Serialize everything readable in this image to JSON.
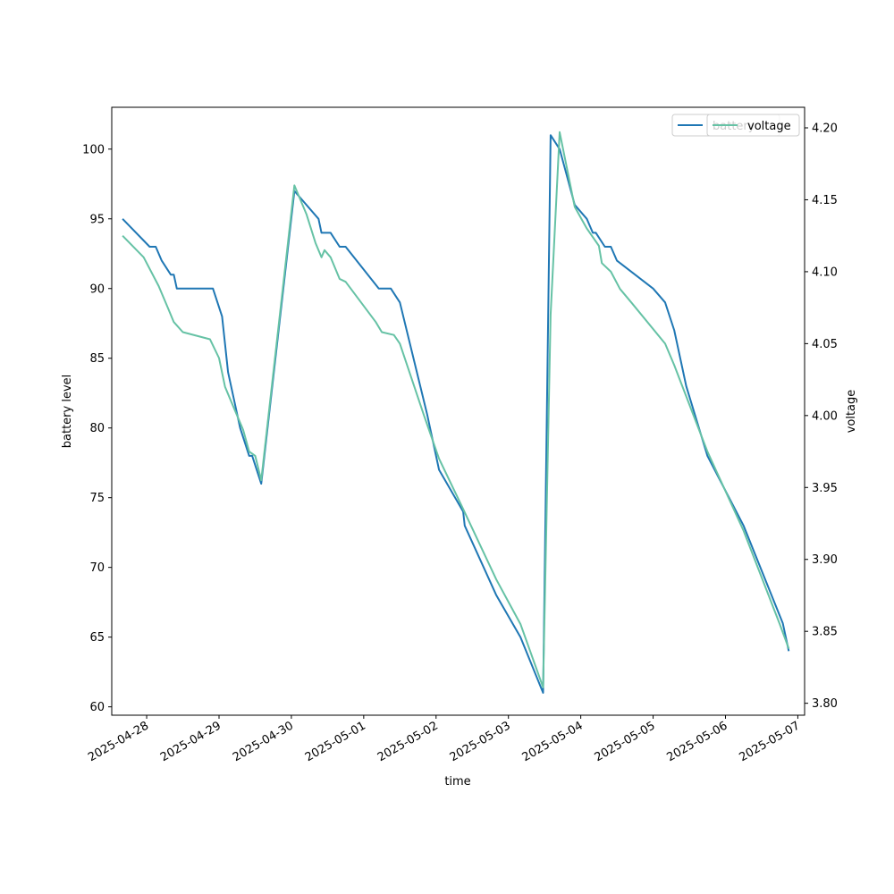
{
  "chart_data": {
    "type": "line",
    "xlabel": "time",
    "ylabel_left": "battery level",
    "ylabel_right": "voltage",
    "x_range": [
      "2025-04-27 12:25",
      "2025-05-07 02:15"
    ],
    "ylim_left": [
      59.4,
      103.0
    ],
    "ylim_right": [
      3.7917,
      4.2143
    ],
    "x_ticks": [
      "2025-04-28",
      "2025-04-29",
      "2025-04-30",
      "2025-05-01",
      "2025-05-02",
      "2025-05-03",
      "2025-05-04",
      "2025-05-05",
      "2025-05-06",
      "2025-05-07"
    ],
    "yticks_left": [
      60,
      65,
      70,
      75,
      80,
      85,
      90,
      95,
      100
    ],
    "yticks_right": [
      3.8,
      3.85,
      3.9,
      3.95,
      4.0,
      4.05,
      4.1,
      4.15,
      4.2
    ],
    "legend": [
      {
        "label": "battery",
        "color": "#1f77b4"
      },
      {
        "label": "voltage",
        "color": "#66c2a5"
      }
    ],
    "legend_placement": "upper-right",
    "grid": false,
    "series": [
      {
        "name": "battery",
        "axis": "left",
        "color": "#1f77b4",
        "points": [
          [
            "2025-04-27 16:00",
            95
          ],
          [
            "2025-04-28 01:00",
            93
          ],
          [
            "2025-04-28 03:00",
            93
          ],
          [
            "2025-04-28 05:00",
            92
          ],
          [
            "2025-04-28 08:00",
            91
          ],
          [
            "2025-04-28 09:00",
            91
          ],
          [
            "2025-04-28 10:00",
            90
          ],
          [
            "2025-04-28 22:00",
            90
          ],
          [
            "2025-04-29 01:00",
            88
          ],
          [
            "2025-04-29 03:00",
            84
          ],
          [
            "2025-04-29 07:00",
            80
          ],
          [
            "2025-04-29 10:00",
            78
          ],
          [
            "2025-04-29 11:00",
            78
          ],
          [
            "2025-04-29 14:00",
            76
          ],
          [
            "2025-04-30 01:00",
            97
          ],
          [
            "2025-04-30 09:00",
            95
          ],
          [
            "2025-04-30 10:00",
            94
          ],
          [
            "2025-04-30 13:00",
            94
          ],
          [
            "2025-04-30 16:00",
            93
          ],
          [
            "2025-04-30 18:00",
            93
          ],
          [
            "2025-05-01 05:00",
            90
          ],
          [
            "2025-05-01 09:00",
            90
          ],
          [
            "2025-05-01 12:00",
            89
          ],
          [
            "2025-05-01 21:00",
            81
          ],
          [
            "2025-05-02 01:00",
            77
          ],
          [
            "2025-05-02 09:00",
            74
          ],
          [
            "2025-05-02 09:30",
            73
          ],
          [
            "2025-05-02 20:00",
            68
          ],
          [
            "2025-05-03 04:00",
            65
          ],
          [
            "2025-05-03 11:30",
            61
          ],
          [
            "2025-05-03 14:00",
            101
          ],
          [
            "2025-05-03 17:00",
            100
          ],
          [
            "2025-05-03 22:00",
            96
          ],
          [
            "2025-05-04 02:00",
            95
          ],
          [
            "2025-05-04 04:00",
            94
          ],
          [
            "2025-05-04 05:00",
            94
          ],
          [
            "2025-05-04 08:00",
            93
          ],
          [
            "2025-05-04 10:00",
            93
          ],
          [
            "2025-05-04 12:00",
            92
          ],
          [
            "2025-05-05 00:00",
            90
          ],
          [
            "2025-05-05 04:00",
            89
          ],
          [
            "2025-05-05 07:00",
            87
          ],
          [
            "2025-05-05 11:00",
            83
          ],
          [
            "2025-05-05 18:00",
            78
          ],
          [
            "2025-05-06 06:00",
            73
          ],
          [
            "2025-05-06 19:00",
            66
          ],
          [
            "2025-05-06 21:00",
            64
          ]
        ]
      },
      {
        "name": "voltage",
        "axis": "right",
        "color": "#66c2a5",
        "points": [
          [
            "2025-04-27 16:00",
            4.125
          ],
          [
            "2025-04-27 23:00",
            4.11
          ],
          [
            "2025-04-28 04:00",
            4.09
          ],
          [
            "2025-04-28 07:00",
            4.075
          ],
          [
            "2025-04-28 09:00",
            4.065
          ],
          [
            "2025-04-28 12:00",
            4.058
          ],
          [
            "2025-04-28 21:00",
            4.053
          ],
          [
            "2025-04-29 00:00",
            4.04
          ],
          [
            "2025-04-29 02:00",
            4.02
          ],
          [
            "2025-04-29 05:00",
            4.005
          ],
          [
            "2025-04-29 08:00",
            3.99
          ],
          [
            "2025-04-29 10:00",
            3.975
          ],
          [
            "2025-04-29 12:00",
            3.972
          ],
          [
            "2025-04-29 14:00",
            3.955
          ],
          [
            "2025-04-30 01:00",
            4.16
          ],
          [
            "2025-04-30 05:00",
            4.14
          ],
          [
            "2025-04-30 08:00",
            4.12
          ],
          [
            "2025-04-30 10:00",
            4.11
          ],
          [
            "2025-04-30 11:00",
            4.115
          ],
          [
            "2025-04-30 13:00",
            4.11
          ],
          [
            "2025-04-30 16:00",
            4.095
          ],
          [
            "2025-04-30 18:00",
            4.093
          ],
          [
            "2025-05-01 04:00",
            4.065
          ],
          [
            "2025-05-01 06:00",
            4.058
          ],
          [
            "2025-05-01 10:00",
            4.056
          ],
          [
            "2025-05-01 12:00",
            4.05
          ],
          [
            "2025-05-01 20:00",
            4.0
          ],
          [
            "2025-05-02 01:00",
            3.97
          ],
          [
            "2025-05-02 09:00",
            3.935
          ],
          [
            "2025-05-02 20:00",
            3.886
          ],
          [
            "2025-05-03 04:00",
            3.855
          ],
          [
            "2025-05-03 11:30",
            3.811
          ],
          [
            "2025-05-03 14:00",
            4.07
          ],
          [
            "2025-05-03 17:00",
            4.197
          ],
          [
            "2025-05-03 22:00",
            4.145
          ],
          [
            "2025-05-04 02:00",
            4.13
          ],
          [
            "2025-05-04 06:00",
            4.118
          ],
          [
            "2025-05-04 07:00",
            4.106
          ],
          [
            "2025-05-04 10:00",
            4.1
          ],
          [
            "2025-05-04 13:00",
            4.088
          ],
          [
            "2025-05-04 17:00",
            4.078
          ],
          [
            "2025-05-05 04:00",
            4.05
          ],
          [
            "2025-05-05 07:00",
            4.035
          ],
          [
            "2025-05-05 18:00",
            3.975
          ],
          [
            "2025-05-06 06:00",
            3.92
          ],
          [
            "2025-05-06 18:00",
            3.855
          ],
          [
            "2025-05-06 21:00",
            3.838
          ]
        ]
      }
    ]
  }
}
